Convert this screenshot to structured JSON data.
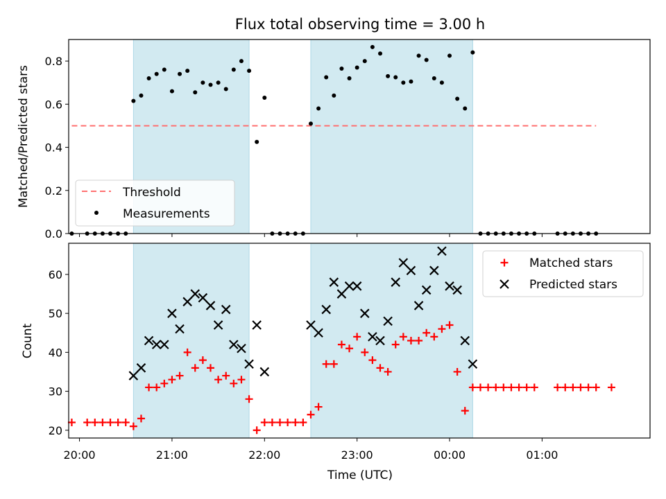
{
  "figure": {
    "title": "Flux total observing time = 3.00 h",
    "xlabel": "Time (UTC)",
    "x_ticks": [
      "20:00",
      "21:00",
      "22:00",
      "23:00",
      "00:00",
      "01:00"
    ],
    "colors": {
      "shade": "#add8e6",
      "threshold": "#ff7070",
      "measurements": "#000000",
      "matched": "#ff0000",
      "predicted": "#000000"
    }
  },
  "chart_data": [
    {
      "type": "scatter",
      "panel": "top",
      "ylabel": "Matched/Predicted stars",
      "ylim": [
        0,
        0.9
      ],
      "yticks": [
        "0.0",
        "0.2",
        "0.4",
        "0.6",
        "0.8"
      ],
      "xlim": [
        "19:53",
        "02:10"
      ],
      "shaded_intervals": [
        [
          "20:35",
          "21:50"
        ],
        [
          "22:30",
          "00:15"
        ]
      ],
      "legend": {
        "position": "lower-left",
        "entries": [
          "Threshold",
          "Measurements"
        ]
      },
      "threshold": {
        "name": "Threshold",
        "value": 0.5,
        "x_range": [
          "19:55",
          "01:35"
        ]
      },
      "series": [
        {
          "name": "Measurements",
          "marker": "dot",
          "points": [
            [
              "19:55",
              0.0
            ],
            [
              "20:05",
              0.0
            ],
            [
              "20:10",
              0.0
            ],
            [
              "20:15",
              0.0
            ],
            [
              "20:20",
              0.0
            ],
            [
              "20:25",
              0.0
            ],
            [
              "20:30",
              0.0
            ],
            [
              "20:35",
              0.615
            ],
            [
              "20:40",
              0.64
            ],
            [
              "20:45",
              0.72
            ],
            [
              "20:50",
              0.74
            ],
            [
              "20:55",
              0.76
            ],
            [
              "21:00",
              0.66
            ],
            [
              "21:05",
              0.74
            ],
            [
              "21:10",
              0.755
            ],
            [
              "21:15",
              0.655
            ],
            [
              "21:20",
              0.7
            ],
            [
              "21:25",
              0.69
            ],
            [
              "21:30",
              0.7
            ],
            [
              "21:35",
              0.67
            ],
            [
              "21:40",
              0.76
            ],
            [
              "21:45",
              0.8
            ],
            [
              "21:50",
              0.755
            ],
            [
              "21:55",
              0.425
            ],
            [
              "22:00",
              0.63
            ],
            [
              "22:05",
              0.0
            ],
            [
              "22:10",
              0.0
            ],
            [
              "22:15",
              0.0
            ],
            [
              "22:20",
              0.0
            ],
            [
              "22:25",
              0.0
            ],
            [
              "22:30",
              0.51
            ],
            [
              "22:35",
              0.58
            ],
            [
              "22:40",
              0.725
            ],
            [
              "22:45",
              0.64
            ],
            [
              "22:50",
              0.765
            ],
            [
              "22:55",
              0.72
            ],
            [
              "23:00",
              0.77
            ],
            [
              "23:05",
              0.8
            ],
            [
              "23:10",
              0.865
            ],
            [
              "23:15",
              0.835
            ],
            [
              "23:20",
              0.73
            ],
            [
              "23:25",
              0.725
            ],
            [
              "23:30",
              0.7
            ],
            [
              "23:35",
              0.705
            ],
            [
              "23:40",
              0.825
            ],
            [
              "23:45",
              0.805
            ],
            [
              "23:50",
              0.72
            ],
            [
              "23:55",
              0.7
            ],
            [
              "00:00",
              0.825
            ],
            [
              "00:05",
              0.625
            ],
            [
              "00:10",
              0.58
            ],
            [
              "00:15",
              0.84
            ],
            [
              "00:20",
              0.0
            ],
            [
              "00:25",
              0.0
            ],
            [
              "00:30",
              0.0
            ],
            [
              "00:35",
              0.0
            ],
            [
              "00:40",
              0.0
            ],
            [
              "00:45",
              0.0
            ],
            [
              "00:50",
              0.0
            ],
            [
              "00:55",
              0.0
            ],
            [
              "01:10",
              0.0
            ],
            [
              "01:15",
              0.0
            ],
            [
              "01:20",
              0.0
            ],
            [
              "01:25",
              0.0
            ],
            [
              "01:30",
              0.0
            ],
            [
              "01:35",
              0.0
            ]
          ]
        }
      ]
    },
    {
      "type": "scatter",
      "panel": "bottom",
      "ylabel": "Count",
      "ylim": [
        18,
        68
      ],
      "yticks": [
        "20",
        "30",
        "40",
        "50",
        "60"
      ],
      "xlim": [
        "19:53",
        "02:10"
      ],
      "shaded_intervals": [
        [
          "20:35",
          "21:50"
        ],
        [
          "22:30",
          "00:15"
        ]
      ],
      "legend": {
        "position": "upper-right",
        "entries": [
          "Matched stars",
          "Predicted stars"
        ]
      },
      "series": [
        {
          "name": "Matched stars",
          "marker": "plus",
          "points": [
            [
              "19:55",
              22
            ],
            [
              "20:05",
              22
            ],
            [
              "20:10",
              22
            ],
            [
              "20:15",
              22
            ],
            [
              "20:20",
              22
            ],
            [
              "20:25",
              22
            ],
            [
              "20:30",
              22
            ],
            [
              "20:35",
              21
            ],
            [
              "20:40",
              23
            ],
            [
              "20:45",
              31
            ],
            [
              "20:50",
              31
            ],
            [
              "20:55",
              32
            ],
            [
              "21:00",
              33
            ],
            [
              "21:05",
              34
            ],
            [
              "21:10",
              40
            ],
            [
              "21:15",
              36
            ],
            [
              "21:20",
              38
            ],
            [
              "21:25",
              36
            ],
            [
              "21:30",
              33
            ],
            [
              "21:35",
              34
            ],
            [
              "21:40",
              32
            ],
            [
              "21:45",
              33
            ],
            [
              "21:50",
              28
            ],
            [
              "21:55",
              20
            ],
            [
              "22:00",
              22
            ],
            [
              "22:05",
              22
            ],
            [
              "22:10",
              22
            ],
            [
              "22:15",
              22
            ],
            [
              "22:20",
              22
            ],
            [
              "22:25",
              22
            ],
            [
              "22:30",
              24
            ],
            [
              "22:35",
              26
            ],
            [
              "22:40",
              37
            ],
            [
              "22:45",
              37
            ],
            [
              "22:50",
              42
            ],
            [
              "22:55",
              41
            ],
            [
              "23:00",
              44
            ],
            [
              "23:05",
              40
            ],
            [
              "23:10",
              38
            ],
            [
              "23:15",
              36
            ],
            [
              "23:20",
              35
            ],
            [
              "23:25",
              42
            ],
            [
              "23:30",
              44
            ],
            [
              "23:35",
              43
            ],
            [
              "23:40",
              43
            ],
            [
              "23:45",
              45
            ],
            [
              "23:50",
              44
            ],
            [
              "23:55",
              46
            ],
            [
              "00:00",
              47
            ],
            [
              "00:05",
              35
            ],
            [
              "00:10",
              25
            ],
            [
              "00:15",
              31
            ],
            [
              "00:20",
              31
            ],
            [
              "00:25",
              31
            ],
            [
              "00:30",
              31
            ],
            [
              "00:35",
              31
            ],
            [
              "00:40",
              31
            ],
            [
              "00:45",
              31
            ],
            [
              "00:50",
              31
            ],
            [
              "00:55",
              31
            ],
            [
              "01:10",
              31
            ],
            [
              "01:15",
              31
            ],
            [
              "01:20",
              31
            ],
            [
              "01:25",
              31
            ],
            [
              "01:30",
              31
            ],
            [
              "01:35",
              31
            ],
            [
              "01:45",
              31
            ]
          ]
        },
        {
          "name": "Predicted stars",
          "marker": "x",
          "points": [
            [
              "20:35",
              34
            ],
            [
              "20:40",
              36
            ],
            [
              "20:45",
              43
            ],
            [
              "20:50",
              42
            ],
            [
              "20:55",
              42
            ],
            [
              "21:00",
              50
            ],
            [
              "21:05",
              46
            ],
            [
              "21:10",
              53
            ],
            [
              "21:15",
              55
            ],
            [
              "21:20",
              54
            ],
            [
              "21:25",
              52
            ],
            [
              "21:30",
              47
            ],
            [
              "21:35",
              51
            ],
            [
              "21:40",
              42
            ],
            [
              "21:45",
              41
            ],
            [
              "21:50",
              37
            ],
            [
              "21:55",
              47
            ],
            [
              "22:00",
              35
            ],
            [
              "22:30",
              47
            ],
            [
              "22:35",
              45
            ],
            [
              "22:40",
              51
            ],
            [
              "22:45",
              58
            ],
            [
              "22:50",
              55
            ],
            [
              "22:55",
              57
            ],
            [
              "23:00",
              57
            ],
            [
              "23:05",
              50
            ],
            [
              "23:10",
              44
            ],
            [
              "23:15",
              43
            ],
            [
              "23:20",
              48
            ],
            [
              "23:25",
              58
            ],
            [
              "23:30",
              63
            ],
            [
              "23:35",
              61
            ],
            [
              "23:40",
              52
            ],
            [
              "23:45",
              56
            ],
            [
              "23:50",
              61
            ],
            [
              "23:55",
              66
            ],
            [
              "00:00",
              57
            ],
            [
              "00:05",
              56
            ],
            [
              "00:10",
              43
            ],
            [
              "00:15",
              37
            ]
          ]
        }
      ]
    }
  ]
}
